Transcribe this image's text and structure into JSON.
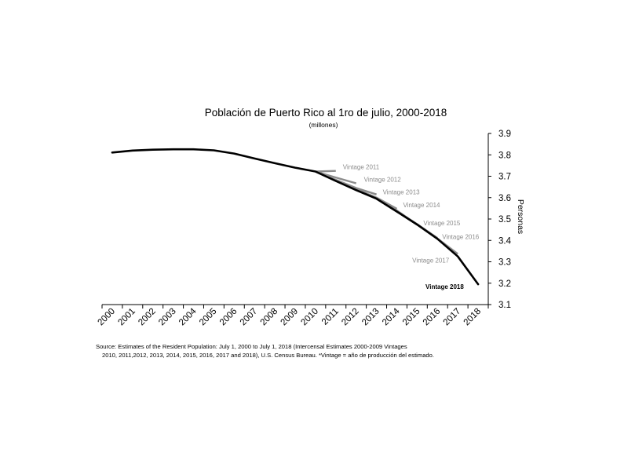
{
  "chart_data": {
    "type": "line",
    "title": "Población de Puerto Rico al 1ro de julio, 2000-2018",
    "subtitle": "(millones)",
    "ylabel": "Personas",
    "xlabel": "",
    "y_axis_side": "right",
    "ylim": [
      3.1,
      3.9
    ],
    "yticks": [
      "3.1",
      "3.2",
      "3.3",
      "3.4",
      "3.5",
      "3.6",
      "3.7",
      "3.8",
      "3.9"
    ],
    "grid": false,
    "categories": [
      "2000",
      "2001",
      "2002",
      "2003",
      "2004",
      "2005",
      "2006",
      "2007",
      "2008",
      "2009",
      "2010",
      "2011",
      "2012",
      "2013",
      "2014",
      "2015",
      "2016",
      "2017",
      "2018"
    ],
    "series": [
      {
        "name": "Vintage 2018",
        "color": "#000000",
        "values": [
          3.811,
          3.82,
          3.824,
          3.826,
          3.826,
          3.821,
          3.806,
          3.783,
          3.761,
          3.74,
          3.722,
          3.678,
          3.635,
          3.595,
          3.535,
          3.474,
          3.407,
          3.325,
          3.195
        ]
      },
      {
        "name": "Vintage 2011",
        "color": "#8c8c8c",
        "x": [
          "2010",
          "2011"
        ],
        "values": [
          3.722,
          3.725
        ]
      },
      {
        "name": "Vintage 2012",
        "color": "#8c8c8c",
        "x": [
          "2010",
          "2011",
          "2012"
        ],
        "values": [
          3.722,
          3.694,
          3.667
        ]
      },
      {
        "name": "Vintage 2013",
        "color": "#8c8c8c",
        "x": [
          "2010",
          "2011",
          "2012",
          "2013"
        ],
        "values": [
          3.722,
          3.683,
          3.645,
          3.615
        ]
      },
      {
        "name": "Vintage 2014",
        "color": "#8c8c8c",
        "x": [
          "2010",
          "2011",
          "2012",
          "2013",
          "2014"
        ],
        "values": [
          3.722,
          3.68,
          3.64,
          3.6,
          3.548
        ]
      },
      {
        "name": "Vintage 2015",
        "color": "#8c8c8c",
        "x": [
          "2010",
          "2011",
          "2012",
          "2013",
          "2014",
          "2015"
        ],
        "values": [
          3.722,
          3.679,
          3.637,
          3.597,
          3.54,
          3.474
        ]
      },
      {
        "name": "Vintage 2016",
        "color": "#8c8c8c",
        "x": [
          "2010",
          "2011",
          "2012",
          "2013",
          "2014",
          "2015",
          "2016"
        ],
        "values": [
          3.722,
          3.678,
          3.636,
          3.596,
          3.537,
          3.476,
          3.411
        ]
      },
      {
        "name": "Vintage 2017",
        "color": "#8c8c8c",
        "x": [
          "2010",
          "2011",
          "2012",
          "2013",
          "2014",
          "2015",
          "2016",
          "2017"
        ],
        "values": [
          3.722,
          3.678,
          3.635,
          3.595,
          3.535,
          3.474,
          3.409,
          3.337
        ]
      }
    ],
    "annotations": [
      {
        "text": "Vintage 2011",
        "anchor_year": "2011",
        "anchor_value": 3.725
      },
      {
        "text": "Vintage 2012",
        "anchor_year": "2012",
        "anchor_value": 3.667
      },
      {
        "text": "Vintage 2013",
        "anchor_year": "2013",
        "anchor_value": 3.615
      },
      {
        "text": "Vintage 2014",
        "anchor_year": "2014",
        "anchor_value": 3.548
      },
      {
        "text": "Vintage 2015",
        "anchor_year": "2015",
        "anchor_value": 3.474
      },
      {
        "text": "Vintage 2016",
        "anchor_year": "2016",
        "anchor_value": 3.411
      },
      {
        "text": "Vintage 2017",
        "anchor_year": "2017",
        "anchor_value": 3.337
      },
      {
        "text": "Vintage 2018",
        "anchor_year": "2018",
        "anchor_value": 3.195
      }
    ]
  },
  "source": {
    "line1": "Source: Estimates of the Resident Population: July 1, 2000 to July 1, 2018 (Intercensal Estimates 2000-2009 Vintages",
    "line2": "2010, 2011,2012, 2013, 2014, 2015, 2016, 2017 and 2018), U.S. Census Bureau. *Vintage = año de producción del estimado."
  }
}
